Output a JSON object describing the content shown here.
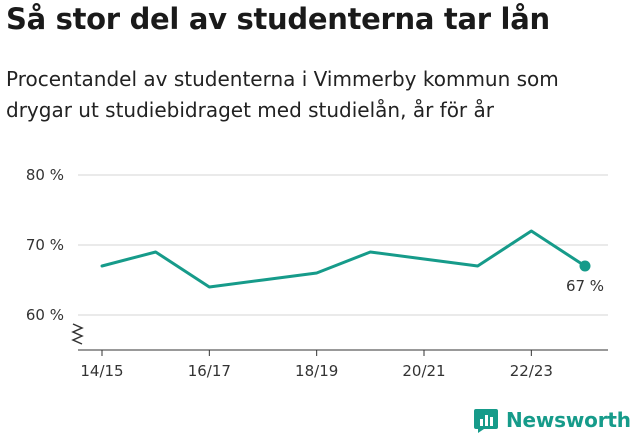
{
  "header": {
    "title": "Så stor del av studenterna tar lån",
    "subtitle": "Procentandel av studenterna i Vimmerby kommun som drygar ut studiebidraget med studielån, år för år"
  },
  "colors": {
    "line": "#169b8a",
    "grid": "#d6d6d6",
    "axis": "#333333"
  },
  "chart_data": {
    "type": "line",
    "title": "Så stor del av studenterna tar lån",
    "subtitle": "Procentandel av studenterna i Vimmerby kommun som drygar ut studiebidraget med studielån, år för år",
    "x": [
      "14/15",
      "15/16",
      "16/17",
      "17/18",
      "18/19",
      "19/20",
      "20/21",
      "21/22",
      "22/23",
      "23/24"
    ],
    "series": [
      {
        "values": [
          67,
          69,
          64,
          65,
          66,
          69,
          68,
          67,
          72,
          67
        ]
      }
    ],
    "x_tick_labels": [
      "14/15",
      "16/17",
      "18/19",
      "20/21",
      "22/23"
    ],
    "y_ticks": [
      60,
      70,
      80
    ],
    "y_tick_labels": [
      "60 %",
      "70 %",
      "80 %"
    ],
    "ylim": [
      55,
      80
    ],
    "y_axis_break": true,
    "grid": true,
    "end_label": "67 %"
  },
  "branding": {
    "logo_text": "Newsworthy",
    "logo_icon": "bar-chart-icon"
  }
}
